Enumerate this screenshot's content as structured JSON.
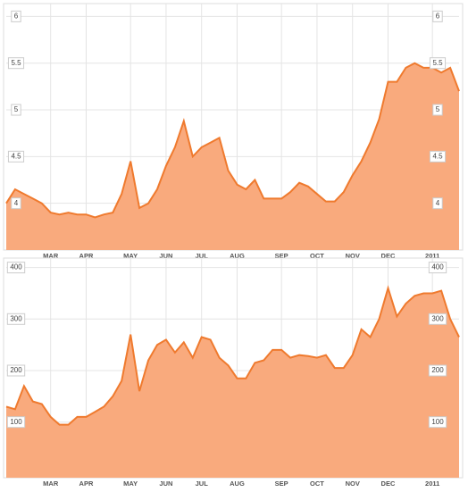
{
  "chart_data": [
    {
      "type": "area",
      "color": "#ef7a2e",
      "fill": "#f9aa7d",
      "grid": true,
      "categories": [
        "",
        "",
        "",
        "",
        "",
        "MAR",
        "",
        "",
        "",
        "APR",
        "",
        "",
        "",
        "",
        "MAY",
        "",
        "",
        "",
        "JUN",
        "",
        "",
        "",
        "JUL",
        "",
        "",
        "",
        "AUG",
        "",
        "",
        "",
        "",
        "SEP",
        "",
        "",
        "",
        "OCT",
        "",
        "",
        "",
        "NOV",
        "",
        "",
        "",
        "DEC",
        "",
        "",
        "",
        "",
        "2011",
        "",
        "",
        ""
      ],
      "values": [
        4.0,
        4.15,
        4.1,
        4.05,
        4.0,
        3.9,
        3.88,
        3.9,
        3.88,
        3.88,
        3.85,
        3.88,
        3.9,
        4.1,
        4.45,
        3.95,
        4.0,
        4.15,
        4.4,
        4.6,
        4.88,
        4.5,
        4.6,
        4.65,
        4.7,
        4.35,
        4.2,
        4.15,
        4.25,
        4.05,
        4.05,
        4.05,
        4.12,
        4.22,
        4.18,
        4.1,
        4.02,
        4.02,
        4.12,
        4.3,
        4.45,
        4.65,
        4.9,
        5.3,
        5.3,
        5.45,
        5.5,
        5.45,
        5.45,
        5.4,
        5.45,
        5.2
      ],
      "ylim": [
        3.5,
        6.08
      ],
      "yticks": [
        4,
        4.5,
        5,
        5.5,
        6
      ]
    },
    {
      "type": "area",
      "color": "#ef7a2e",
      "fill": "#f9aa7d",
      "grid": true,
      "categories": [
        "",
        "",
        "",
        "",
        "",
        "MAR",
        "",
        "",
        "",
        "APR",
        "",
        "",
        "",
        "",
        "MAY",
        "",
        "",
        "",
        "JUN",
        "",
        "",
        "",
        "JUL",
        "",
        "",
        "",
        "AUG",
        "",
        "",
        "",
        "",
        "SEP",
        "",
        "",
        "",
        "OCT",
        "",
        "",
        "",
        "NOV",
        "",
        "",
        "",
        "DEC",
        "",
        "",
        "",
        "",
        "2011",
        "",
        "",
        ""
      ],
      "values": [
        130,
        125,
        170,
        140,
        135,
        110,
        95,
        95,
        110,
        110,
        120,
        130,
        150,
        180,
        270,
        160,
        220,
        250,
        260,
        235,
        255,
        225,
        265,
        260,
        225,
        210,
        185,
        185,
        215,
        220,
        240,
        240,
        225,
        230,
        228,
        225,
        230,
        205,
        205,
        230,
        280,
        265,
        300,
        360,
        305,
        330,
        345,
        350,
        350,
        355,
        300,
        265
      ],
      "ylim": [
        -8,
        408
      ],
      "yticks": [
        100,
        200,
        300,
        400
      ]
    }
  ]
}
